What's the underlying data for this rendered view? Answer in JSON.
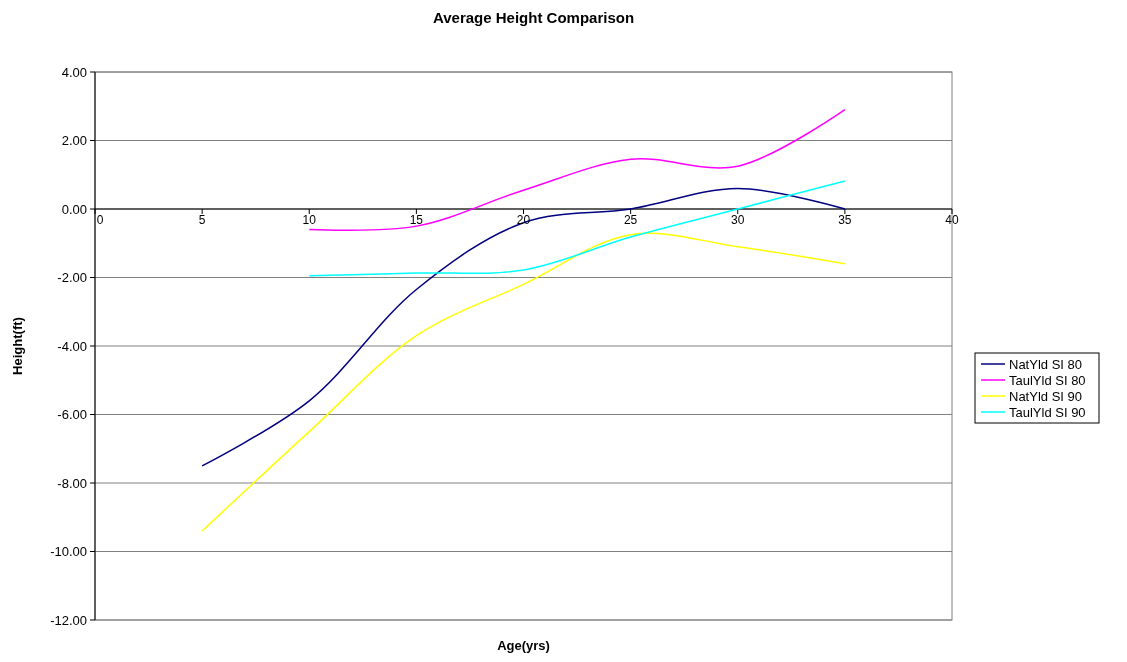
{
  "chart_data": {
    "type": "line",
    "title": "Average Height Comparison",
    "xlabel": "Age(yrs)",
    "ylabel": "Height(ft)",
    "x": [
      5,
      10,
      15,
      20,
      25,
      30,
      35
    ],
    "series": [
      {
        "name": "NatYld SI 80",
        "color": "#000080",
        "values": [
          -7.5,
          -5.6,
          -2.35,
          -0.4,
          0.0,
          0.6,
          0.0
        ]
      },
      {
        "name": "TaulYld SI 80",
        "color": "#ff00ff",
        "values": [
          null,
          -0.6,
          -0.5,
          0.55,
          1.45,
          1.25,
          2.9
        ]
      },
      {
        "name": "NatYld SI 90",
        "color": "#ffff00",
        "values": [
          -9.4,
          -6.5,
          -3.7,
          -2.2,
          -0.75,
          -1.1,
          -1.6
        ]
      },
      {
        "name": "TaulYld SI 90",
        "color": "#00ffff",
        "values": [
          null,
          -1.95,
          -1.87,
          -1.78,
          -0.82,
          0.0,
          0.82
        ]
      }
    ],
    "xlim": [
      0,
      40
    ],
    "xticks": [
      0,
      5,
      10,
      15,
      20,
      25,
      30,
      35,
      40
    ],
    "ylim": [
      -12,
      4
    ],
    "yticks": [
      {
        "value": -12,
        "label": "-12.00"
      },
      {
        "value": -10,
        "label": "-10.00"
      },
      {
        "value": -8,
        "label": "-8.00"
      },
      {
        "value": -6,
        "label": "-6.00"
      },
      {
        "value": -4,
        "label": "-4.00"
      },
      {
        "value": -2,
        "label": "-2.00"
      },
      {
        "value": 0,
        "label": "0.00"
      },
      {
        "value": 2,
        "label": "2.00"
      },
      {
        "value": 4,
        "label": "4.00"
      }
    ],
    "grid": "y",
    "legend": "right",
    "marker": "none",
    "line_style": "solid"
  }
}
